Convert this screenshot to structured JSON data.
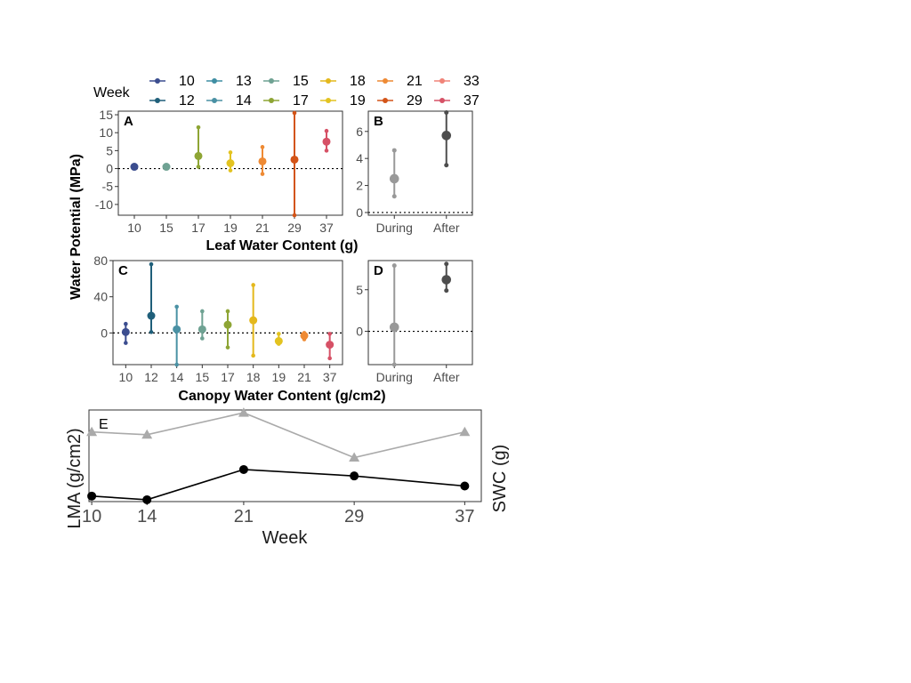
{
  "legend": {
    "title": "Week",
    "items": [
      {
        "label": "10",
        "color": "#3b4d8f"
      },
      {
        "label": "12",
        "color": "#1f5f7a"
      },
      {
        "label": "13",
        "color": "#3f8ea3"
      },
      {
        "label": "14",
        "color": "#4a91a4"
      },
      {
        "label": "15",
        "color": "#6fa293"
      },
      {
        "label": "17",
        "color": "#8ea535"
      },
      {
        "label": "18",
        "color": "#e4b81c"
      },
      {
        "label": "19",
        "color": "#e3c320"
      },
      {
        "label": "21",
        "color": "#ee8a34"
      },
      {
        "label": "29",
        "color": "#d35418"
      },
      {
        "label": "33",
        "color": "#f08378"
      },
      {
        "label": "37",
        "color": "#d65166"
      }
    ]
  },
  "labels": {
    "shared_ylabel": "Water Potential (MPa)",
    "panel_a": "A",
    "panel_b": "B",
    "panel_c": "C",
    "panel_d": "D",
    "panel_e": "E",
    "a_xlabel": "Leaf Water Content (g)",
    "c_xlabel": "Canopy Water Content (g/cm2)",
    "e_xlabel": "Week",
    "e_ylabel_left": "LMA (g/cm2)",
    "e_ylabel_right": "SWC (g)"
  },
  "chart_data": [
    {
      "panel": "A",
      "type": "scatter",
      "x_categories": [
        "10",
        "15",
        "17",
        "19",
        "21",
        "29",
        "37"
      ],
      "ylim": [
        -13,
        16
      ],
      "yticks": [
        15,
        10,
        5,
        0,
        -5,
        -10
      ],
      "reference_line": 0,
      "points": [
        {
          "week": "10",
          "color": "#3b4d8f",
          "mean": 0.5,
          "low": 0.5,
          "high": 0.5
        },
        {
          "week": "15",
          "color": "#6fa293",
          "mean": 0.5,
          "low": 0.5,
          "high": 0.5
        },
        {
          "week": "17",
          "color": "#8ea535",
          "mean": 3.5,
          "low": 0.5,
          "high": 11.5
        },
        {
          "week": "19",
          "color": "#e3c320",
          "mean": 1.5,
          "low": -0.5,
          "high": 4.5
        },
        {
          "week": "21",
          "color": "#ee8a34",
          "mean": 2.0,
          "low": -1.5,
          "high": 6.0
        },
        {
          "week": "29",
          "color": "#d35418",
          "mean": 2.5,
          "low": -13.0,
          "high": 15.5
        },
        {
          "week": "37",
          "color": "#d65166",
          "mean": 7.5,
          "low": 5.0,
          "high": 10.5
        }
      ]
    },
    {
      "panel": "B",
      "type": "scatter",
      "x_categories": [
        "During",
        "After"
      ],
      "ylim": [
        -0.2,
        7.5
      ],
      "yticks": [
        6,
        4,
        2,
        0
      ],
      "reference_line": 0,
      "points": [
        {
          "group": "During",
          "color": "#999999",
          "mean": 2.5,
          "low": 1.2,
          "high": 4.6
        },
        {
          "group": "After",
          "color": "#4d4d4d",
          "mean": 5.7,
          "low": 3.5,
          "high": 7.4
        }
      ]
    },
    {
      "panel": "C",
      "type": "scatter",
      "x_categories": [
        "10",
        "12",
        "14",
        "15",
        "17",
        "18",
        "19",
        "21",
        "37"
      ],
      "ylim": [
        -35,
        80
      ],
      "yticks": [
        80,
        40,
        0
      ],
      "reference_line": 0,
      "points": [
        {
          "week": "10",
          "color": "#3b4d8f",
          "mean": 1,
          "low": -11,
          "high": 10
        },
        {
          "week": "12",
          "color": "#1f5f7a",
          "mean": 19,
          "low": 1,
          "high": 76
        },
        {
          "week": "14",
          "color": "#4a91a4",
          "mean": 4,
          "low": -35,
          "high": 29
        },
        {
          "week": "15",
          "color": "#6fa293",
          "mean": 4,
          "low": -6,
          "high": 24
        },
        {
          "week": "17",
          "color": "#8ea535",
          "mean": 9,
          "low": -16,
          "high": 24
        },
        {
          "week": "18",
          "color": "#e4b81c",
          "mean": 14,
          "low": -25,
          "high": 53
        },
        {
          "week": "19",
          "color": "#e3c320",
          "mean": -9,
          "low": -12,
          "high": -1
        },
        {
          "week": "21",
          "color": "#ee8a34",
          "mean": -3,
          "low": -7,
          "high": 0
        },
        {
          "week": "37",
          "color": "#d65166",
          "mean": -13,
          "low": -28,
          "high": -1
        }
      ]
    },
    {
      "panel": "D",
      "type": "scatter",
      "x_categories": [
        "During",
        "After"
      ],
      "ylim": [
        -4,
        8.5
      ],
      "yticks": [
        5,
        0
      ],
      "reference_line": 0,
      "points": [
        {
          "group": "During",
          "color": "#999999",
          "mean": 0.5,
          "low": -4,
          "high": 7.9
        },
        {
          "group": "After",
          "color": "#4d4d4d",
          "mean": 6.2,
          "low": 4.9,
          "high": 8.1
        }
      ]
    },
    {
      "panel": "E",
      "type": "line",
      "x": [
        10,
        14,
        21,
        29,
        37
      ],
      "xticks": [
        "10",
        "14",
        "21",
        "29",
        "37"
      ],
      "xlim": [
        9.8,
        38.2
      ],
      "ylim": [
        0,
        1
      ],
      "series": [
        {
          "color": "#aaaaaa",
          "marker": "triangle",
          "values": [
            0.76,
            0.73,
            0.97,
            0.48,
            0.76
          ]
        },
        {
          "color": "#000000",
          "marker": "circle",
          "values": [
            0.06,
            0.02,
            0.35,
            0.28,
            0.17
          ]
        }
      ]
    }
  ]
}
